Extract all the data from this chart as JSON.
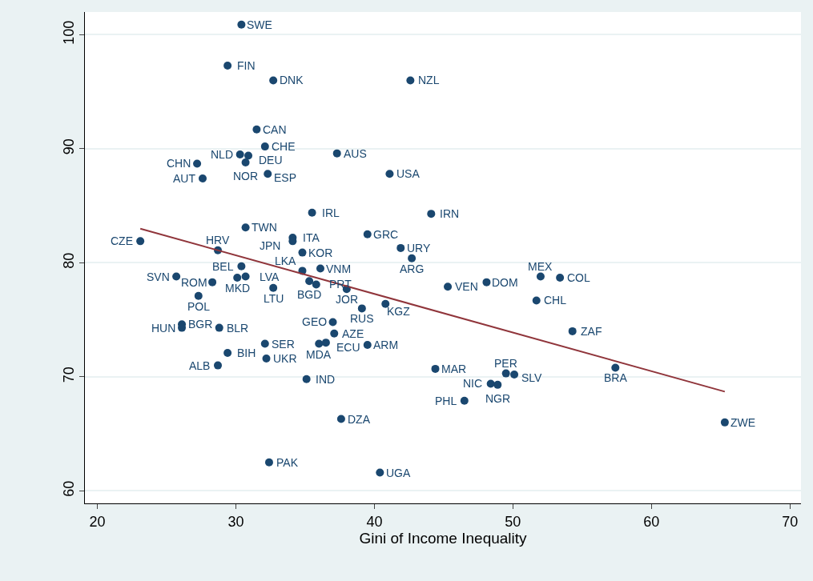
{
  "chart_data": {
    "type": "scatter",
    "xlabel": "Gini of Income Inequality",
    "xlim": [
      19.1,
      70.8
    ],
    "ylim": [
      58.9,
      102.0
    ],
    "xticks": [
      20,
      30,
      40,
      50,
      60,
      70
    ],
    "yticks": [
      60,
      70,
      80,
      90,
      100
    ],
    "grid": "y",
    "series": [
      {
        "color": "#1a476f",
        "marker": "circle",
        "x": [
          30.4,
          29.4,
          32.7,
          42.6,
          31.5,
          32.1,
          30.3,
          30.9,
          30.7,
          27.2,
          27.6,
          32.3,
          37.3,
          41.1,
          35.5,
          44.1,
          30.7,
          39.5,
          23.1,
          34.1,
          34.1,
          41.9,
          34.8,
          42.7,
          28.7,
          30.4,
          36.1,
          30.1,
          30.7,
          25.7,
          28.3,
          32.7,
          34.8,
          35.3,
          35.8,
          38.0,
          39.1,
          40.8,
          45.3,
          48.1,
          52.0,
          53.4,
          51.7,
          54.3,
          57.4,
          27.3,
          26.1,
          26.1,
          28.8,
          37.0,
          32.1,
          29.4,
          28.7,
          32.2,
          37.1,
          36.0,
          36.5,
          39.5,
          35.1,
          44.4,
          49.5,
          50.1,
          48.4,
          48.9,
          46.5,
          37.6,
          32.4,
          40.4,
          65.3
        ],
        "values": [
          100.9,
          97.3,
          96.0,
          96.0,
          91.7,
          90.2,
          89.5,
          89.4,
          88.8,
          88.7,
          87.4,
          87.8,
          89.6,
          87.8,
          84.4,
          84.3,
          83.1,
          82.5,
          81.9,
          82.2,
          81.9,
          81.3,
          80.9,
          80.4,
          81.1,
          79.7,
          79.5,
          78.7,
          78.8,
          78.8,
          78.3,
          77.8,
          79.3,
          78.4,
          78.1,
          77.7,
          76.0,
          76.4,
          77.9,
          78.3,
          78.8,
          78.7,
          76.7,
          74.0,
          70.8,
          77.1,
          74.6,
          74.3,
          74.3,
          74.8,
          72.9,
          72.1,
          71.0,
          71.6,
          73.8,
          72.9,
          73.0,
          72.8,
          69.8,
          70.7,
          70.3,
          70.2,
          69.4,
          69.3,
          67.9,
          66.3,
          62.5,
          61.6,
          66.0
        ],
        "value_labels": [
          "SWE",
          "FIN",
          "DNK",
          "NZL",
          "CAN",
          "CHE",
          "NLD",
          "DEU",
          "NOR",
          "CHN",
          "AUT",
          "ESP",
          "AUS",
          "USA",
          "IRL",
          "IRN",
          "TWN",
          "GRC",
          "CZE",
          "ITA",
          "JPN",
          "URY",
          "KOR",
          "ARG",
          "HRV",
          "BEL",
          "VNM",
          "MKD",
          "LVA",
          "SVN",
          "ROM",
          "LTU",
          "LKA",
          "BGD",
          "PRT",
          "JOR",
          "RUS",
          "KGZ",
          "VEN",
          "DOM",
          "MEX",
          "COL",
          "CHL",
          "ZAF",
          "BRA",
          "POL",
          "BGR",
          "HUN",
          "BLR",
          "GEO",
          "SER",
          "BIH",
          "ALB",
          "UKR",
          "AZE",
          "MDA",
          "ECU",
          "ARM",
          "IND",
          "MAR",
          "PER",
          "SLV",
          "NIC",
          "NGR",
          "PHL",
          "DZA",
          "PAK",
          "UGA",
          "ZWE"
        ]
      },
      {
        "type": "line",
        "color": "#90353b",
        "x": [
          23.1,
          65.3
        ],
        "values": [
          83.0,
          68.7
        ]
      }
    ]
  }
}
